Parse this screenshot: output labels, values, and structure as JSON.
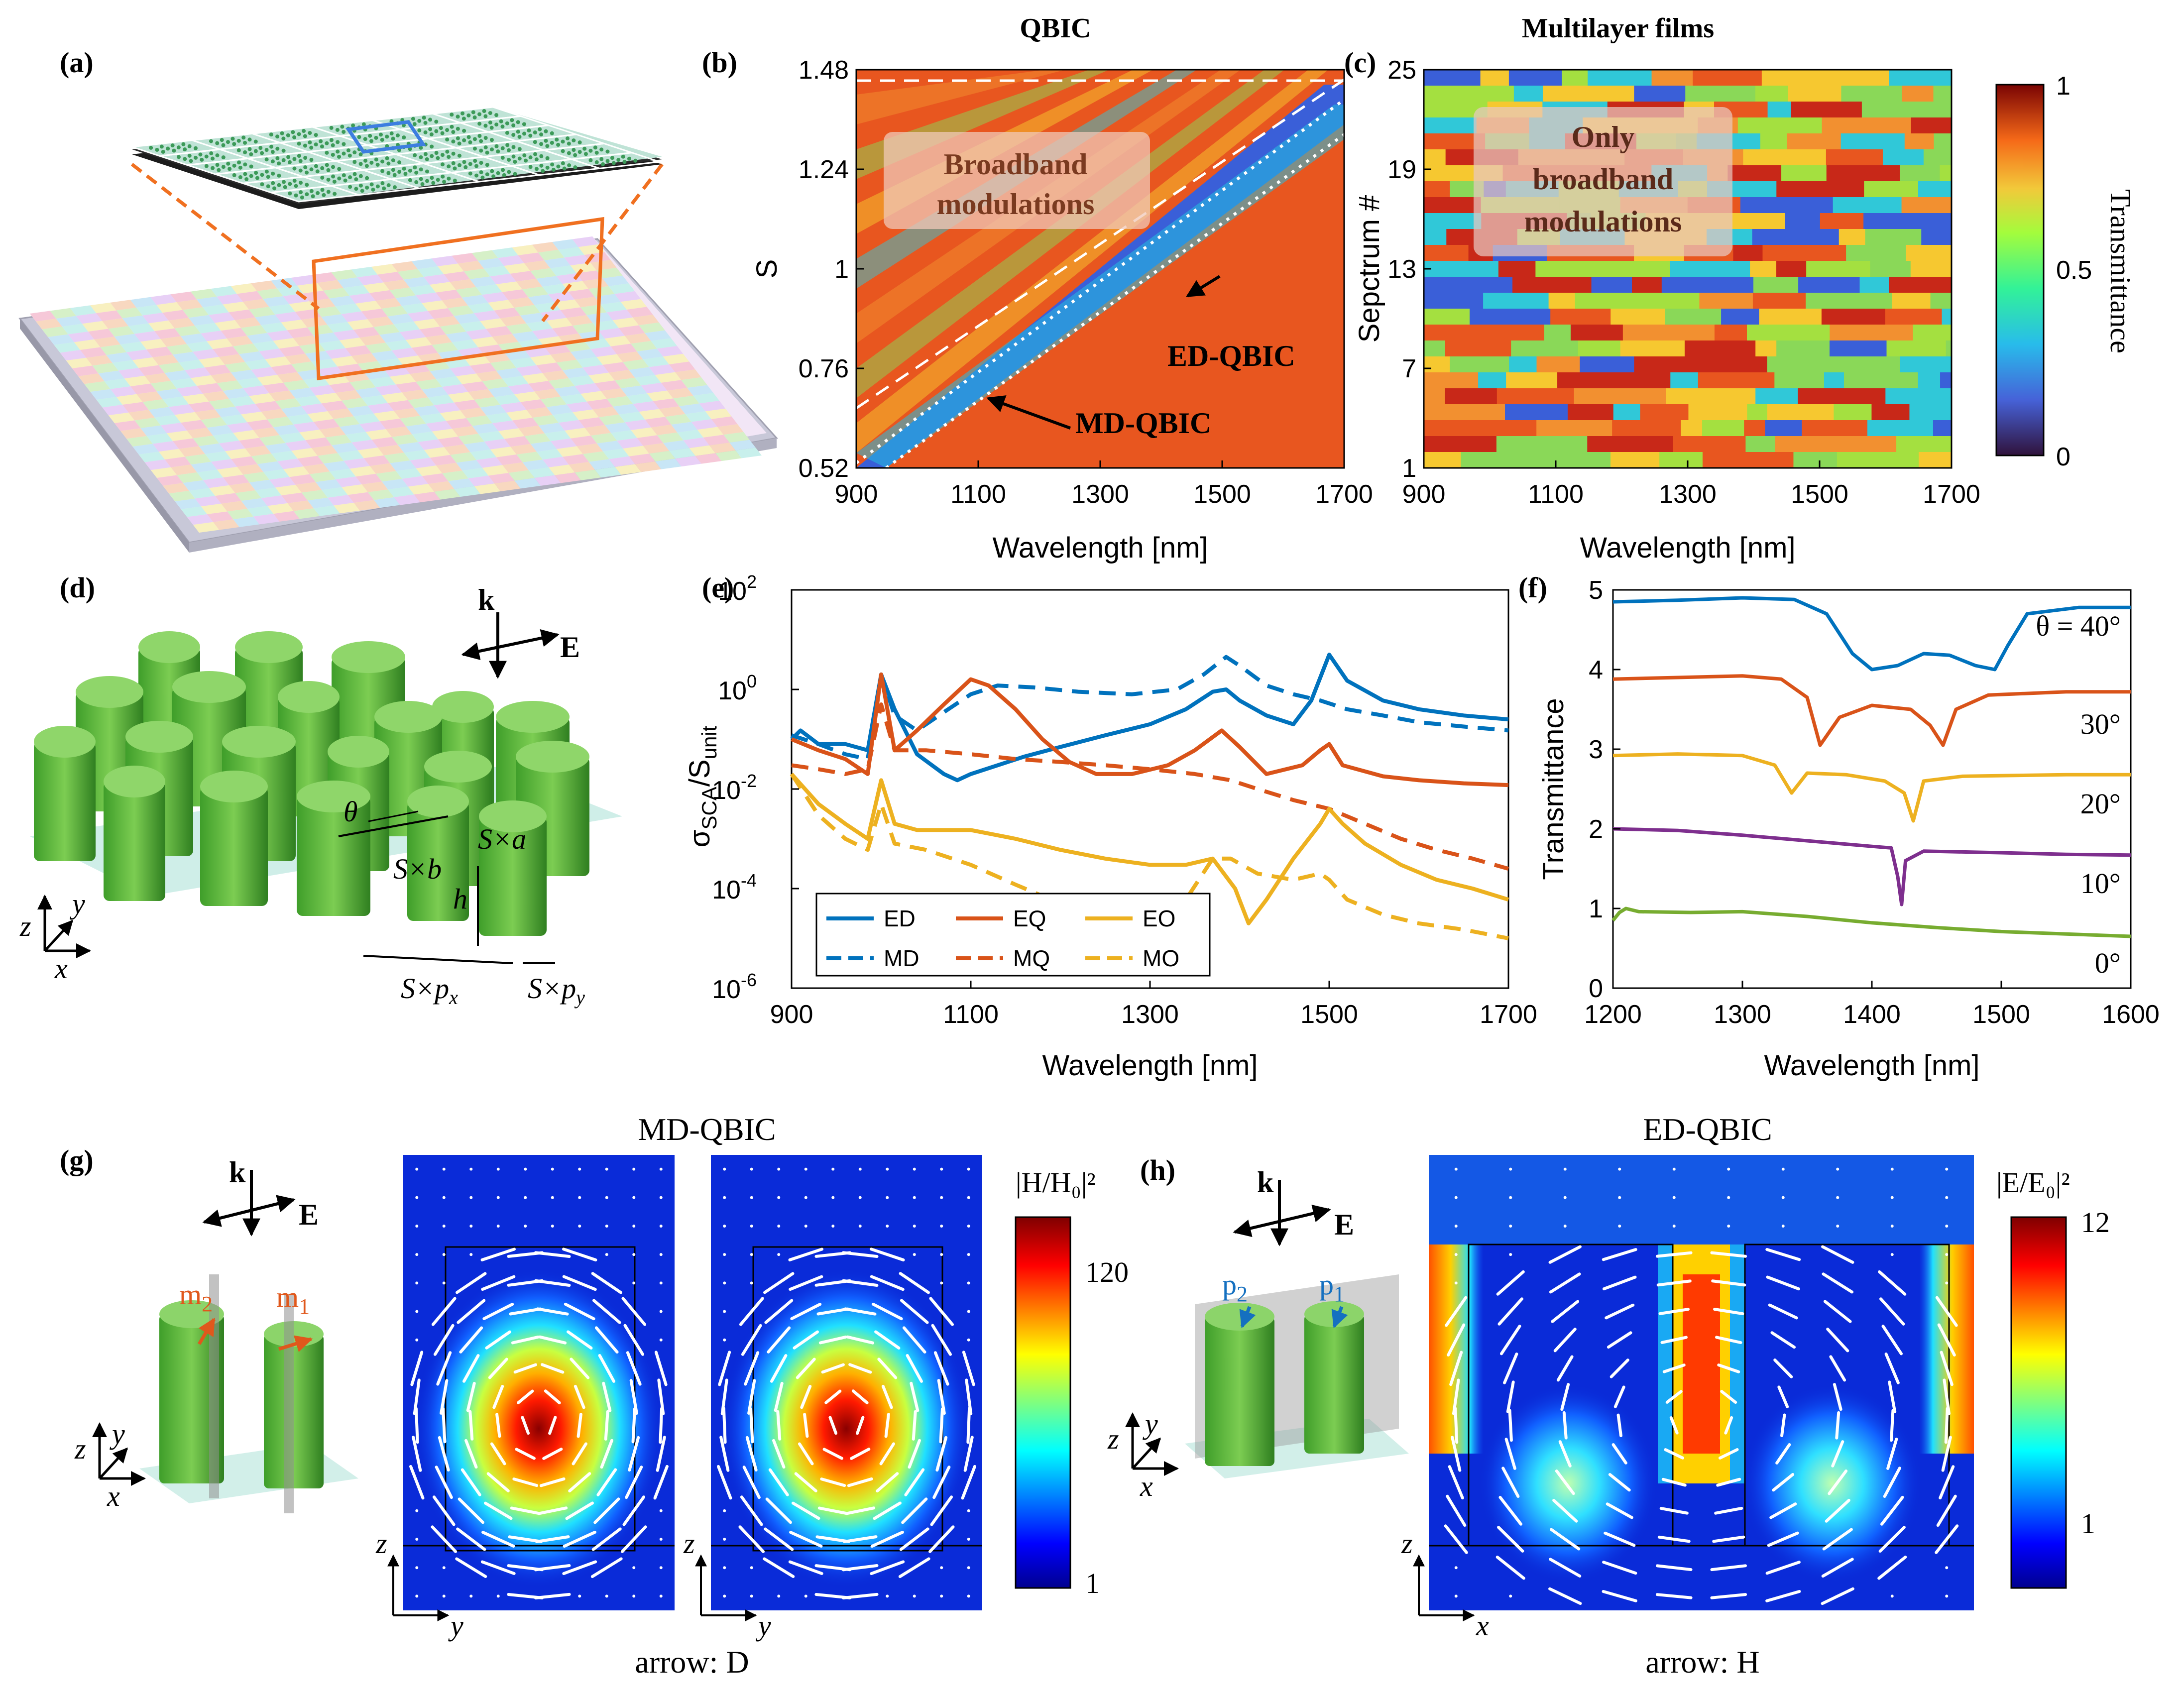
{
  "panel_labels": [
    "(a)",
    "(b)",
    "(c)",
    "(d)",
    "(e)",
    "(f)",
    "(g)",
    "(h)"
  ],
  "titles": {
    "b": "QBIC",
    "c": "Multilayer films",
    "g": "MD-QBIC",
    "h": "ED-QBIC"
  },
  "colorbars": {
    "transmittance": {
      "label": "Transmittance",
      "ticks": [
        "1",
        "0.5",
        "0"
      ]
    },
    "h_field": {
      "label": "|H/H₀|²",
      "ticks": [
        "120",
        "1"
      ]
    },
    "e_field": {
      "label": "|E/E₀|²",
      "ticks": [
        "12",
        "1"
      ]
    }
  },
  "annotations": {
    "b_box": [
      "Broadband",
      "modulations"
    ],
    "c_box": [
      "Only",
      "broadband",
      "modulations"
    ],
    "ed_qbic": "ED-QBIC",
    "md_qbic": "MD-QBIC",
    "arrow_d": "arrow: D",
    "arrow_h": "arrow: H"
  },
  "schematic_labels": {
    "d": {
      "k": "k",
      "E": "E",
      "theta": "θ",
      "Sa": "S×a",
      "Sb": "S×b",
      "h": "h",
      "Spx": "S×p",
      "Spy": "S×p",
      "px_sub": "x",
      "py_sub": "y",
      "x": "x",
      "y": "y",
      "z": "z"
    },
    "g": {
      "k": "k",
      "E": "E",
      "m2": "m",
      "m1": "m",
      "sub2": "2",
      "sub1": "1",
      "x": "x",
      "y": "y",
      "z": "z",
      "axis_h": "y",
      "axis_v": "z"
    },
    "h": {
      "k": "k",
      "E": "E",
      "p2": "p",
      "p1": "p",
      "sub2": "2",
      "sub1": "1",
      "x": "x",
      "y": "y",
      "z": "z",
      "axis_h": "x",
      "axis_v": "z"
    }
  },
  "chart_data": [
    {
      "id": "b",
      "type": "heatmap",
      "xlabel": "Wavelength [nm]",
      "ylabel": "S",
      "xticks": [
        "900",
        "1100",
        "1300",
        "1500",
        "1700"
      ],
      "yticks": [
        "0.52",
        "0.76",
        "1",
        "1.24",
        "1.48"
      ],
      "xlim": [
        900,
        1700
      ],
      "ylim": [
        0.52,
        1.48
      ]
    },
    {
      "id": "c",
      "type": "heatmap",
      "xlabel": "Wavelength [nm]",
      "ylabel": "Sepctrum #",
      "xticks": [
        "900",
        "1100",
        "1300",
        "1500",
        "1700"
      ],
      "yticks": [
        "1",
        "7",
        "13",
        "19",
        "25"
      ],
      "xlim": [
        900,
        1700
      ],
      "ylim": [
        1,
        25
      ]
    },
    {
      "id": "e",
      "type": "line",
      "xlabel": "Wavelength [nm]",
      "ylabel": "σSCA/Sunit",
      "xlim": [
        900,
        1700
      ],
      "ylim_log10": [
        -6,
        2
      ],
      "yscale": "log",
      "xticks": [
        "900",
        "1100",
        "1300",
        "1500",
        "1700"
      ],
      "yticks": [
        "10",
        "10",
        "10",
        "10",
        "10"
      ],
      "ytick_exp": [
        "2",
        "0",
        "-2",
        "-4",
        "-6"
      ],
      "series": [
        {
          "name": "ED",
          "color": "#0072BD",
          "dash": false,
          "x": [
            900,
            910,
            930,
            960,
            985,
            1000,
            1015,
            1040,
            1070,
            1085,
            1100,
            1130,
            1160,
            1200,
            1250,
            1300,
            1340,
            1370,
            1385,
            1400,
            1430,
            1460,
            1480,
            1500,
            1520,
            1560,
            1600,
            1650,
            1700
          ],
          "y": [
            0.1,
            0.15,
            0.08,
            0.08,
            0.06,
            2,
            0.4,
            0.05,
            0.02,
            0.015,
            0.02,
            0.03,
            0.045,
            0.07,
            0.12,
            0.2,
            0.4,
            0.9,
            1.0,
            0.6,
            0.3,
            0.2,
            0.6,
            5,
            1.5,
            0.6,
            0.4,
            0.3,
            0.25
          ]
        },
        {
          "name": "MD",
          "color": "#0072BD",
          "dash": true,
          "x": [
            900,
            930,
            960,
            985,
            1000,
            1015,
            1040,
            1070,
            1100,
            1130,
            1170,
            1220,
            1280,
            1330,
            1360,
            1385,
            1400,
            1430,
            1460,
            1490,
            1520,
            1560,
            1600,
            1650,
            1700
          ],
          "y": [
            0.12,
            0.08,
            0.05,
            0.04,
            2,
            0.3,
            0.15,
            0.35,
            0.8,
            1.2,
            1.1,
            0.9,
            0.8,
            1.0,
            2,
            4.5,
            3,
            1.2,
            0.8,
            0.6,
            0.4,
            0.3,
            0.22,
            0.18,
            0.15
          ]
        },
        {
          "name": "EQ",
          "color": "#D95319",
          "dash": false,
          "x": [
            900,
            930,
            960,
            985,
            1000,
            1015,
            1040,
            1070,
            1100,
            1120,
            1150,
            1180,
            1210,
            1240,
            1280,
            1320,
            1350,
            1380,
            1400,
            1430,
            1470,
            1490,
            1500,
            1515,
            1560,
            1600,
            1650,
            1700
          ],
          "y": [
            0.1,
            0.06,
            0.04,
            0.02,
            2,
            0.06,
            0.15,
            0.5,
            1.6,
            1.2,
            0.4,
            0.1,
            0.035,
            0.02,
            0.02,
            0.03,
            0.06,
            0.15,
            0.07,
            0.02,
            0.03,
            0.06,
            0.08,
            0.03,
            0.018,
            0.015,
            0.013,
            0.012
          ]
        },
        {
          "name": "MQ",
          "color": "#D95319",
          "dash": true,
          "x": [
            900,
            930,
            960,
            985,
            1000,
            1015,
            1050,
            1100,
            1150,
            1200,
            1250,
            1300,
            1350,
            1390,
            1420,
            1460,
            1500,
            1540,
            1580,
            1620,
            1660,
            1700
          ],
          "y": [
            0.03,
            0.025,
            0.02,
            0.025,
            0.5,
            0.06,
            0.06,
            0.05,
            0.04,
            0.035,
            0.03,
            0.025,
            0.02,
            0.015,
            0.01,
            0.006,
            0.004,
            0.002,
            0.001,
            0.0006,
            0.0004,
            0.00025
          ]
        },
        {
          "name": "EO",
          "color": "#EDB120",
          "dash": false,
          "x": [
            900,
            930,
            960,
            985,
            1000,
            1015,
            1040,
            1070,
            1100,
            1150,
            1200,
            1250,
            1300,
            1340,
            1370,
            1395,
            1410,
            1430,
            1460,
            1490,
            1500,
            1515,
            1540,
            1580,
            1620,
            1660,
            1700
          ],
          "y": [
            0.02,
            0.005,
            0.002,
            0.001,
            0.015,
            0.002,
            0.0015,
            0.0015,
            0.0015,
            0.001,
            0.0006,
            0.0004,
            0.0003,
            0.0003,
            0.0004,
            0.0001,
            2e-05,
            6e-05,
            0.0004,
            0.002,
            0.004,
            0.002,
            0.0008,
            0.0003,
            0.00015,
            0.0001,
            6e-05
          ]
        },
        {
          "name": "MO",
          "color": "#EDB120",
          "dash": true,
          "x": [
            900,
            930,
            960,
            985,
            1000,
            1015,
            1050,
            1100,
            1150,
            1200,
            1250,
            1300,
            1340,
            1370,
            1390,
            1420,
            1460,
            1490,
            1500,
            1520,
            1560,
            1600,
            1650,
            1700
          ],
          "y": [
            0.02,
            0.003,
            0.001,
            0.0006,
            0.005,
            0.0008,
            0.0006,
            0.0003,
            0.00012,
            5e-05,
            3e-05,
            3e-05,
            6e-05,
            0.0004,
            0.0004,
            0.0002,
            0.00015,
            0.0002,
            0.00015,
            6e-05,
            3e-05,
            2e-05,
            1.5e-05,
            1e-05
          ]
        }
      ]
    },
    {
      "id": "f",
      "type": "line",
      "xlabel": "Wavelength [nm]",
      "ylabel": "Transmittance",
      "xlim": [
        1200,
        1600
      ],
      "ylim": [
        0,
        5
      ],
      "xticks": [
        "1200",
        "1300",
        "1400",
        "1500",
        "1600"
      ],
      "yticks": [
        "0",
        "1",
        "2",
        "3",
        "4",
        "5"
      ],
      "series": [
        {
          "name": "θ = 40°",
          "color": "#0072BD",
          "x": [
            1200,
            1250,
            1300,
            1340,
            1365,
            1385,
            1400,
            1420,
            1440,
            1460,
            1480,
            1495,
            1505,
            1520,
            1560,
            1600
          ],
          "y": [
            4.85,
            4.87,
            4.9,
            4.88,
            4.7,
            4.2,
            4.0,
            4.05,
            4.2,
            4.18,
            4.05,
            4.0,
            4.3,
            4.7,
            4.78,
            4.78
          ]
        },
        {
          "name": "30°",
          "color": "#D95319",
          "x": [
            1200,
            1250,
            1300,
            1330,
            1350,
            1360,
            1375,
            1400,
            1430,
            1445,
            1455,
            1465,
            1490,
            1550,
            1600
          ],
          "y": [
            3.88,
            3.9,
            3.92,
            3.88,
            3.65,
            3.05,
            3.4,
            3.55,
            3.5,
            3.3,
            3.05,
            3.5,
            3.68,
            3.72,
            3.72
          ]
        },
        {
          "name": "20°",
          "color": "#EDB120",
          "x": [
            1200,
            1250,
            1300,
            1325,
            1338,
            1350,
            1380,
            1410,
            1425,
            1432,
            1440,
            1470,
            1550,
            1600
          ],
          "y": [
            2.92,
            2.94,
            2.92,
            2.8,
            2.45,
            2.7,
            2.68,
            2.6,
            2.45,
            2.1,
            2.6,
            2.66,
            2.68,
            2.68
          ]
        },
        {
          "name": "10°",
          "color": "#7E2F8E",
          "x": [
            1200,
            1250,
            1300,
            1350,
            1400,
            1415,
            1420,
            1423,
            1426,
            1440,
            1500,
            1550,
            1600
          ],
          "y": [
            2.0,
            1.98,
            1.92,
            1.85,
            1.78,
            1.76,
            1.4,
            1.05,
            1.6,
            1.72,
            1.7,
            1.68,
            1.67
          ]
        },
        {
          "name": "0°",
          "color": "#77AC30",
          "x": [
            1200,
            1205,
            1210,
            1220,
            1260,
            1300,
            1350,
            1400,
            1450,
            1500,
            1550,
            1600
          ],
          "y": [
            0.85,
            0.95,
            1.0,
            0.96,
            0.95,
            0.96,
            0.9,
            0.82,
            0.76,
            0.71,
            0.68,
            0.65
          ]
        }
      ]
    }
  ]
}
